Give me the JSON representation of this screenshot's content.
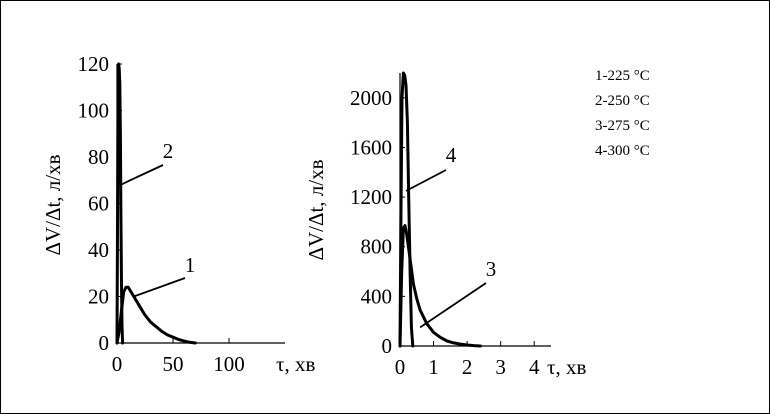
{
  "chart_data": [
    {
      "type": "line",
      "xlabel": "τ, хв",
      "ylabel": "ΔV/Δt, л/хв",
      "xlim": [
        0,
        150
      ],
      "ylim": [
        0,
        120
      ],
      "xticks": [
        0,
        50,
        100
      ],
      "yticks": [
        0,
        20,
        40,
        60,
        80,
        100,
        120
      ],
      "grid": false,
      "series": [
        {
          "name": "1",
          "x": [
            0,
            2,
            4,
            6,
            8,
            10,
            15,
            20,
            25,
            30,
            35,
            40,
            45,
            50,
            55,
            60,
            65,
            70
          ],
          "y": [
            0,
            5,
            14,
            22,
            24,
            24,
            20,
            16,
            12,
            9,
            7,
            5,
            3.5,
            2.5,
            1.5,
            0.8,
            0.3,
            0
          ]
        },
        {
          "name": "2",
          "x": [
            0,
            0.5,
            1,
            1.5,
            2,
            2.5,
            3,
            3.5,
            4,
            4.5,
            5
          ],
          "y": [
            0,
            60,
            110,
            120,
            118,
            112,
            90,
            55,
            25,
            8,
            0
          ]
        }
      ],
      "annotations": [
        {
          "text": "2",
          "target_x": 3,
          "target_y": 68
        },
        {
          "text": "1",
          "target_x": 15,
          "target_y": 20
        }
      ]
    },
    {
      "type": "line",
      "xlabel": "τ, хв",
      "ylabel": "ΔV/Δt, л/хв",
      "xlim": [
        0,
        4.5
      ],
      "ylim": [
        0,
        2200
      ],
      "xticks": [
        0,
        1,
        2,
        3,
        4
      ],
      "yticks": [
        0,
        400,
        800,
        1200,
        1600,
        2000
      ],
      "grid": false,
      "series": [
        {
          "name": "3",
          "x": [
            0,
            0.05,
            0.1,
            0.15,
            0.2,
            0.3,
            0.4,
            0.5,
            0.6,
            0.8,
            1.0,
            1.2,
            1.4,
            1.6,
            1.8,
            2.0,
            2.2,
            2.4
          ],
          "y": [
            0,
            600,
            950,
            970,
            900,
            700,
            500,
            380,
            290,
            180,
            110,
            70,
            40,
            25,
            15,
            8,
            3,
            0
          ]
        },
        {
          "name": "4",
          "x": [
            0,
            0.03,
            0.06,
            0.1,
            0.14,
            0.18,
            0.22,
            0.26,
            0.3,
            0.34,
            0.38
          ],
          "y": [
            0,
            1100,
            2000,
            2200,
            2180,
            2100,
            1800,
            1200,
            600,
            150,
            0
          ]
        }
      ],
      "annotations": [
        {
          "text": "4",
          "target_x": 0.18,
          "target_y": 1250
        },
        {
          "text": "3",
          "target_x": 0.6,
          "target_y": 150
        }
      ]
    }
  ],
  "legend": {
    "items": [
      "1-225 °C",
      "2-250 °C",
      "3-275 °C",
      "4-300 °C"
    ]
  }
}
